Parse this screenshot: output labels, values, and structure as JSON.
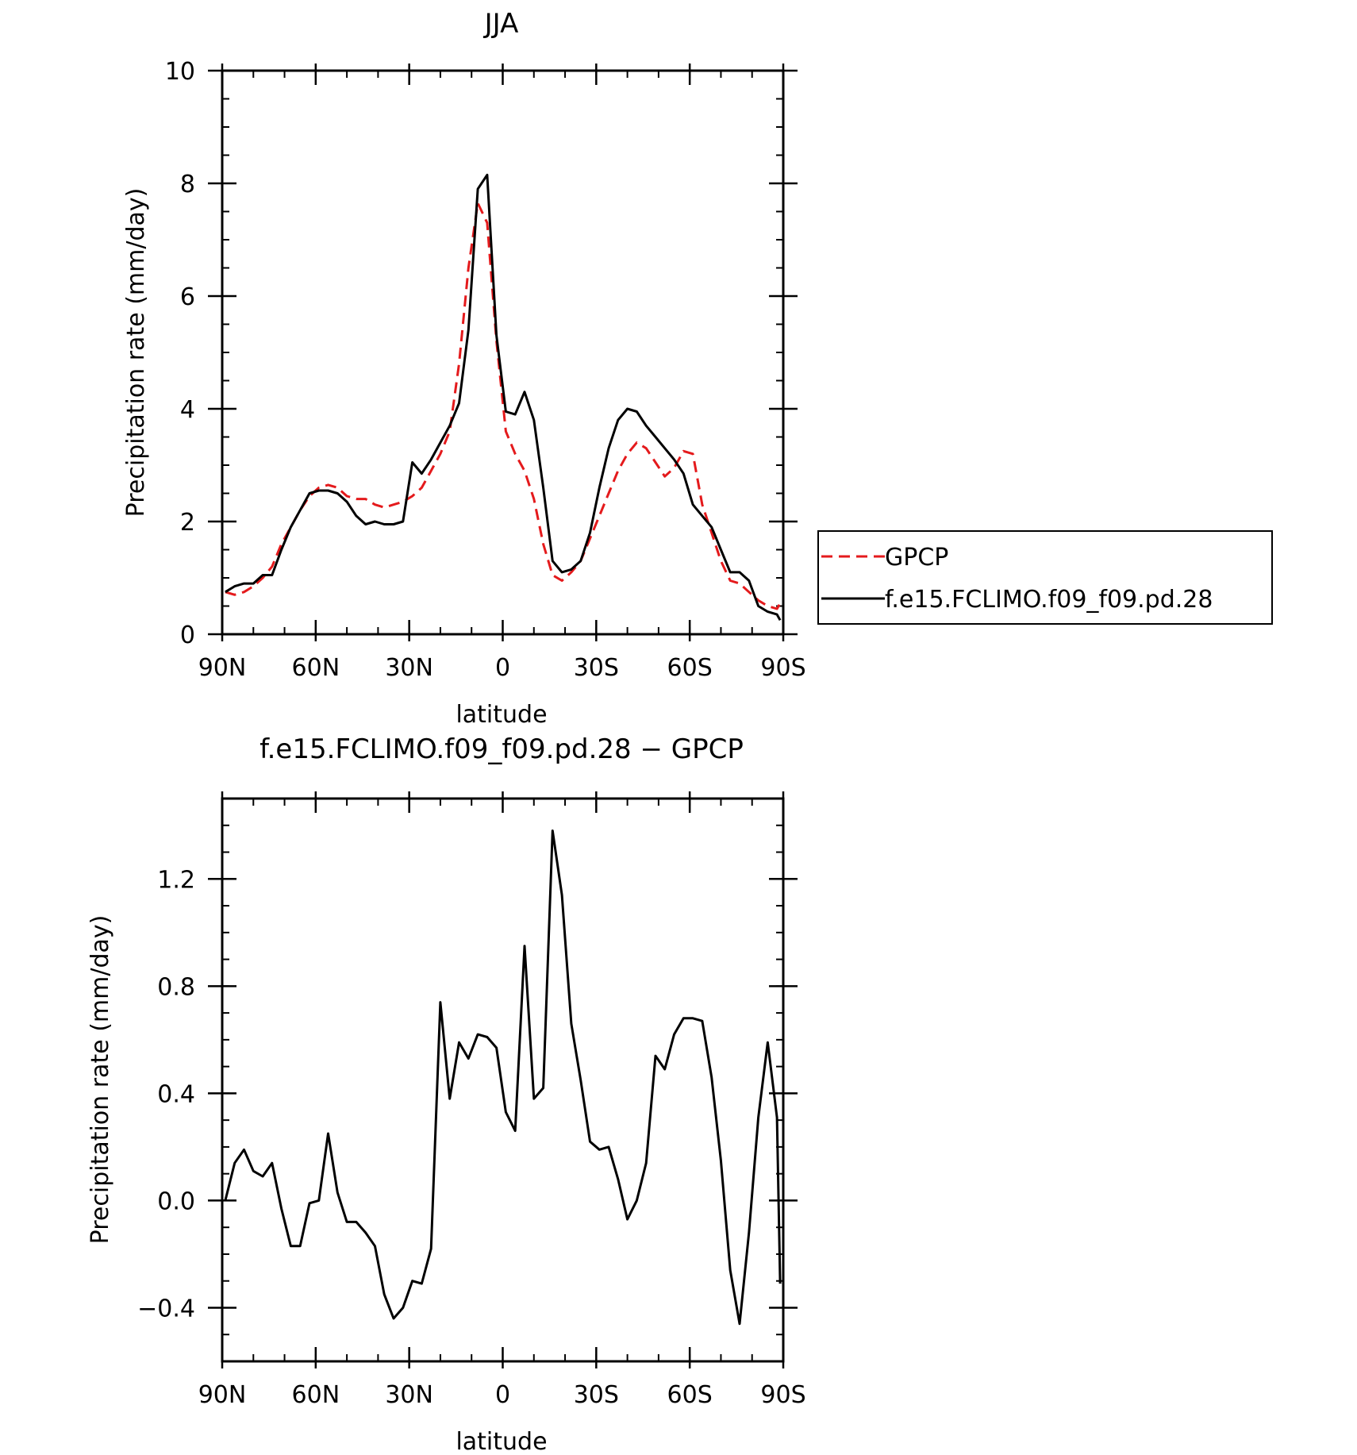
{
  "chart_data": [
    {
      "type": "line",
      "title": "JJA",
      "xlabel": "latitude",
      "ylabel": "Precipitation rate (mm/day)",
      "xlim": [
        90,
        -90
      ],
      "ylim": [
        0,
        10
      ],
      "xticks": [
        90,
        60,
        30,
        0,
        -30,
        -60,
        -90
      ],
      "xtick_labels": [
        "90N",
        "60N",
        "30N",
        "0",
        "30S",
        "60S",
        "90S"
      ],
      "yticks": [
        0,
        2,
        4,
        6,
        8,
        10
      ],
      "ytick_labels": [
        "0",
        "2",
        "4",
        "6",
        "8",
        "10"
      ],
      "legend_position": "right",
      "series": [
        {
          "name": "GPCP",
          "color": "#e41a1c",
          "style": "dashed",
          "x": [
            89,
            86,
            83,
            80,
            77,
            74,
            71,
            68,
            65,
            62,
            59,
            56,
            53,
            50,
            47,
            44,
            41,
            38,
            35,
            32,
            29,
            26,
            23,
            20,
            17,
            14,
            11,
            8,
            5,
            2,
            -1,
            -4,
            -7,
            -10,
            -13,
            -16,
            -19,
            -22,
            -25,
            -28,
            -31,
            -34,
            -37,
            -40,
            -43,
            -46,
            -49,
            -52,
            -55,
            -58,
            -61,
            -64,
            -67,
            -70,
            -73,
            -76,
            -79,
            -82,
            -85,
            -88,
            -89
          ],
          "y": [
            0.75,
            0.7,
            0.75,
            0.85,
            1.0,
            1.2,
            1.6,
            1.9,
            2.2,
            2.45,
            2.6,
            2.65,
            2.6,
            2.45,
            2.4,
            2.4,
            2.3,
            2.25,
            2.3,
            2.35,
            2.45,
            2.6,
            2.9,
            3.2,
            3.6,
            4.8,
            6.5,
            7.65,
            7.3,
            5.2,
            3.6,
            3.2,
            2.9,
            2.4,
            1.6,
            1.05,
            0.95,
            1.1,
            1.3,
            1.7,
            2.1,
            2.5,
            2.9,
            3.2,
            3.4,
            3.3,
            3.05,
            2.8,
            2.95,
            3.25,
            3.2,
            2.3,
            1.8,
            1.3,
            0.95,
            0.9,
            0.75,
            0.6,
            0.5,
            0.45,
            0.55
          ]
        },
        {
          "name": "f.e15.FCLIMO.f09_f09.pd.28",
          "color": "#000000",
          "style": "solid",
          "x": [
            89,
            86,
            83,
            80,
            77,
            74,
            71,
            68,
            65,
            62,
            59,
            56,
            53,
            50,
            47,
            44,
            41,
            38,
            35,
            32,
            29,
            26,
            23,
            20,
            17,
            14,
            11,
            8,
            5,
            2,
            -1,
            -4,
            -7,
            -10,
            -13,
            -16,
            -19,
            -22,
            -25,
            -28,
            -31,
            -34,
            -37,
            -40,
            -43,
            -46,
            -49,
            -52,
            -55,
            -58,
            -61,
            -64,
            -67,
            -70,
            -73,
            -76,
            -79,
            -82,
            -85,
            -88,
            -89
          ],
          "y": [
            0.75,
            0.85,
            0.9,
            0.9,
            1.05,
            1.05,
            1.5,
            1.9,
            2.2,
            2.5,
            2.55,
            2.55,
            2.5,
            2.35,
            2.1,
            1.95,
            2.0,
            1.95,
            1.95,
            2.0,
            3.05,
            2.85,
            3.1,
            3.4,
            3.7,
            4.1,
            5.4,
            7.9,
            8.15,
            5.3,
            3.95,
            3.9,
            4.3,
            3.8,
            2.6,
            1.3,
            1.1,
            1.15,
            1.3,
            1.8,
            2.6,
            3.3,
            3.8,
            4.0,
            3.95,
            3.7,
            3.5,
            3.3,
            3.1,
            2.85,
            2.3,
            2.1,
            1.9,
            1.5,
            1.1,
            1.1,
            0.95,
            0.5,
            0.4,
            0.35,
            0.25
          ]
        }
      ]
    },
    {
      "type": "line",
      "title": "f.e15.FCLIMO.f09_f09.pd.28 − GPCP",
      "xlabel": "latitude",
      "ylabel": "Precipitation rate (mm/day)",
      "xlim": [
        90,
        -90
      ],
      "ylim": [
        -0.6,
        1.5
      ],
      "xticks": [
        90,
        60,
        30,
        0,
        -30,
        -60,
        -90
      ],
      "xtick_labels": [
        "90N",
        "60N",
        "30N",
        "0",
        "30S",
        "60S",
        "90S"
      ],
      "yticks": [
        -0.4,
        0.0,
        0.4,
        0.8,
        1.2
      ],
      "ytick_labels": [
        "−0.4",
        "0.0",
        "0.4",
        "0.8",
        "1.2"
      ],
      "series": [
        {
          "color": "#000000",
          "style": "solid",
          "x": [
            89,
            86,
            83,
            80,
            77,
            74,
            71,
            68,
            65,
            62,
            59,
            56,
            53,
            50,
            47,
            44,
            41,
            38,
            35,
            32,
            29,
            26,
            23,
            20,
            17,
            14,
            11,
            8,
            5,
            2,
            -1,
            -4,
            -7,
            -10,
            -13,
            -16,
            -19,
            -22,
            -25,
            -28,
            -31,
            -34,
            -37,
            -40,
            -43,
            -46,
            -49,
            -52,
            -55,
            -58,
            -61,
            -64,
            -67,
            -70,
            -73,
            -76,
            -79,
            -82,
            -85,
            -88,
            -89
          ],
          "y": [
            0.0,
            0.14,
            0.19,
            0.11,
            0.09,
            0.14,
            -0.03,
            -0.17,
            -0.17,
            -0.01,
            0.0,
            0.25,
            0.03,
            -0.08,
            -0.08,
            -0.12,
            -0.17,
            -0.35,
            -0.44,
            -0.4,
            -0.3,
            -0.31,
            -0.18,
            0.74,
            0.38,
            0.59,
            0.53,
            0.62,
            0.61,
            0.57,
            0.33,
            0.26,
            0.95,
            0.38,
            0.42,
            1.38,
            1.14,
            0.66,
            0.45,
            0.22,
            0.19,
            0.2,
            0.08,
            -0.07,
            0.0,
            0.14,
            0.54,
            0.49,
            0.62,
            0.68,
            0.68,
            0.67,
            0.46,
            0.15,
            -0.26,
            -0.46,
            -0.12,
            0.31,
            0.59,
            0.31,
            -0.31
          ]
        }
      ]
    }
  ]
}
